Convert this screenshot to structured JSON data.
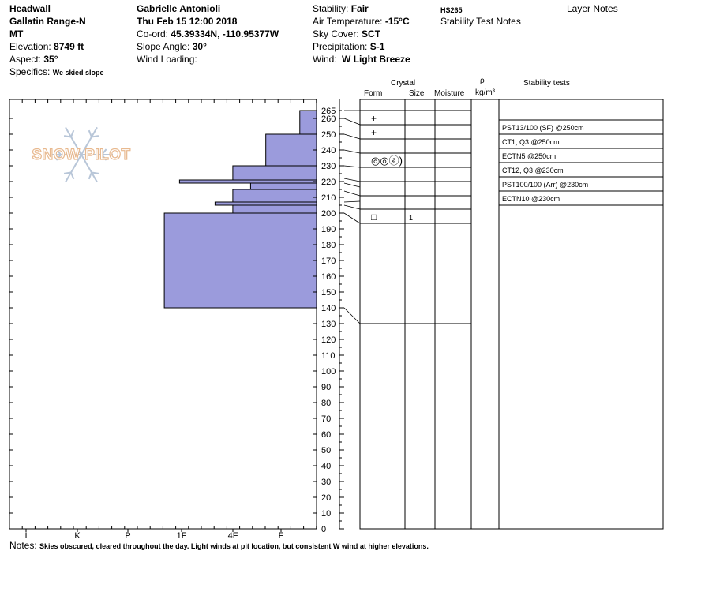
{
  "header": {
    "col1": {
      "location": "Headwall",
      "range": "Gallatin Range-N",
      "state": "MT",
      "elevation_label": "Elevation:",
      "elevation_value": "8749 ft",
      "aspect_label": "Aspect:",
      "aspect_value": "35°",
      "specifics_label": "Specifics:",
      "specifics_value": "We skied slope"
    },
    "col2": {
      "observer": "Gabrielle Antonioli",
      "datetime": "Thu Feb 15 12:00 2018",
      "coord_label": "Co-ord:",
      "coord_value": "45.39334N, -110.95377W",
      "slope_label": "Slope Angle:",
      "slope_value": "30°",
      "wind_loading_label": "Wind Loading:"
    },
    "col3": {
      "stability_label": "Stability:",
      "stability_value": "Fair",
      "air_temp_label": "Air Temperature:",
      "air_temp_value": "-15°C",
      "sky_label": "Sky Cover:",
      "sky_value": "SCT",
      "precip_label": "Precipitation:",
      "precip_value": "S-1",
      "wind_label": "Wind:",
      "wind_value": "W Light Breeze"
    },
    "col4": {
      "hs": "HS265",
      "stability_notes": "Stability Test Notes"
    },
    "layer_notes": "Layer Notes"
  },
  "watermark": "SNOW PILOT",
  "columns": {
    "crystal": "Crystal",
    "form": "Form",
    "size": "Size",
    "moisture": "Moisture",
    "rho": "ρ",
    "density_unit": "kg/m³",
    "stability_tests": "Stability tests"
  },
  "hardness_labels": [
    "I",
    "K",
    "P",
    "1F",
    "4F",
    "F"
  ],
  "depth_labels": [
    "265",
    "260",
    "250",
    "240",
    "230",
    "220",
    "210",
    "200",
    "190",
    "180",
    "170",
    "160",
    "150",
    "140",
    "130",
    "120",
    "110",
    "100",
    "90",
    "80",
    "70",
    "60",
    "50",
    "40",
    "30",
    "20",
    "10",
    "0"
  ],
  "hardness_layers": [
    {
      "top": 265,
      "bottom": 250,
      "hardness_index": 0.33
    },
    {
      "top": 250,
      "bottom": 230,
      "hardness_index": 1.0
    },
    {
      "top": 230,
      "bottom": 221,
      "hardness_index": 1.65
    },
    {
      "top": 221,
      "bottom": 219,
      "hardness_index": 2.7
    },
    {
      "top": 219,
      "bottom": 215,
      "hardness_index": 1.3
    },
    {
      "top": 215,
      "bottom": 207,
      "hardness_index": 1.65
    },
    {
      "top": 207,
      "bottom": 205,
      "hardness_index": 2.0
    },
    {
      "top": 205,
      "bottom": 200,
      "hardness_index": 1.65
    },
    {
      "top": 200,
      "bottom": 140,
      "hardness_index": 3.0
    }
  ],
  "crystal_layers": [
    {
      "form": "+",
      "size": ""
    },
    {
      "form": "+",
      "size": ""
    },
    {
      "form": "◎◎ⓐ)",
      "size": ""
    },
    {
      "form": "",
      "size": ""
    },
    {
      "form": "",
      "size": ""
    },
    {
      "form": "",
      "size": ""
    },
    {
      "form": "□",
      "size": "1"
    }
  ],
  "stability_tests": [
    "PST13/100 (SF) @250cm",
    "CT1, Q3 @250cm",
    "ECTN5 @250cm",
    "CT12, Q3 @230cm",
    "PST100/100 (Arr) @230cm",
    "ECTN10 @230cm"
  ],
  "notes": {
    "label": "Notes:",
    "text": "Skies obscured, cleared throughout the day. Light winds at pit location, but consistent W wind at higher elevations."
  },
  "colors": {
    "layer_fill": "#9b9bdc",
    "watermark": "#e8b98f"
  }
}
